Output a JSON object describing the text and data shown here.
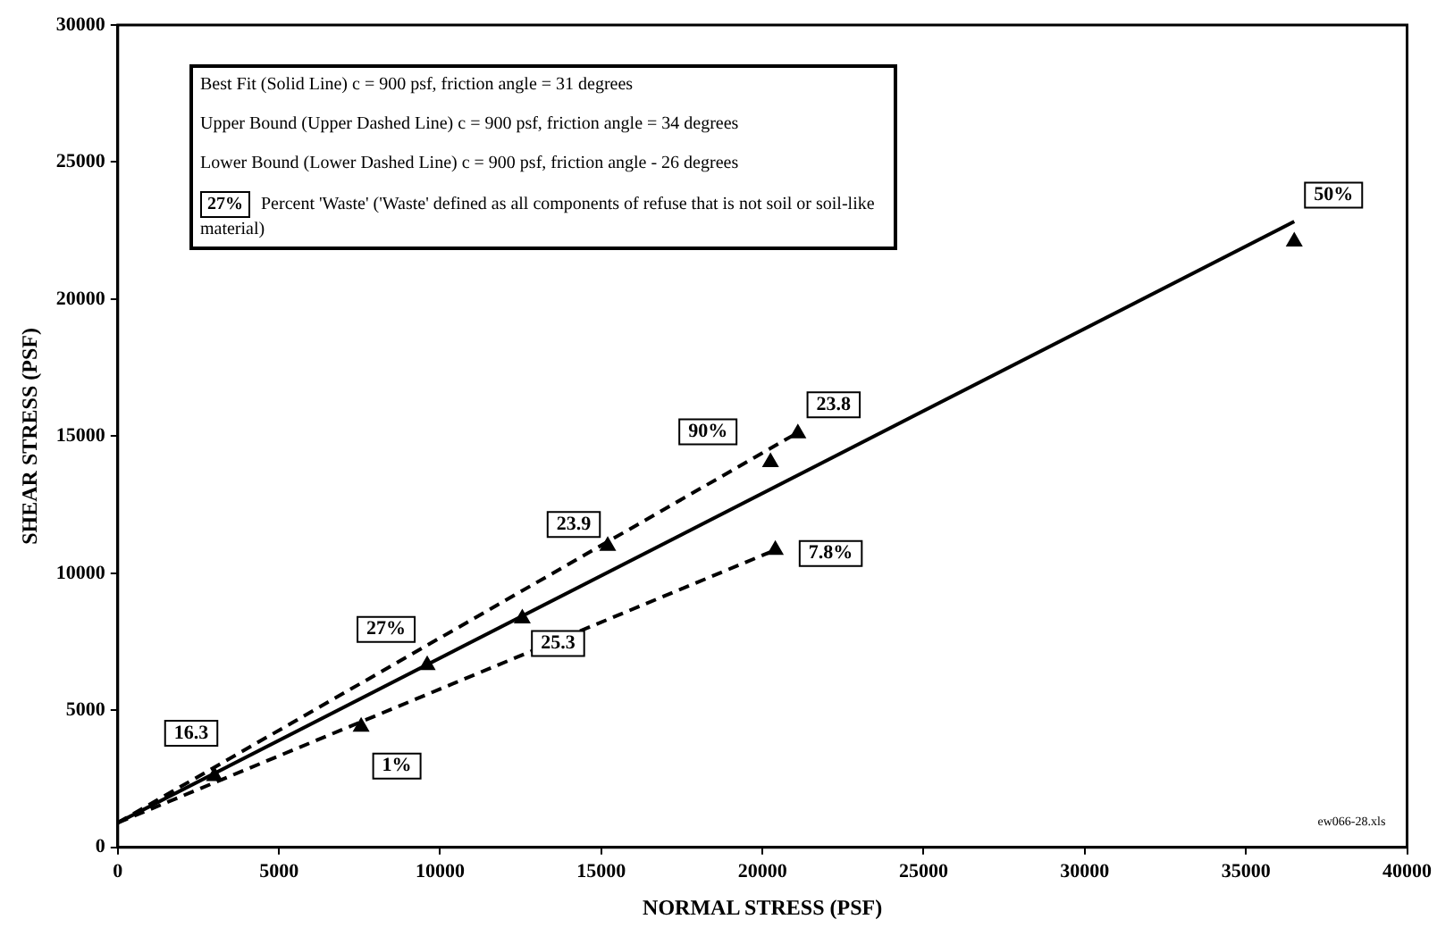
{
  "chart_data": {
    "type": "scatter",
    "xlabel": "NORMAL STRESS (PSF)",
    "ylabel": "SHEAR STRESS (PSF)",
    "xlim": [
      0,
      40000
    ],
    "xticks": [
      0,
      5000,
      10000,
      15000,
      20000,
      25000,
      30000,
      35000,
      40000
    ],
    "ylim": [
      0,
      30000
    ],
    "yticks": [
      0,
      5000,
      10000,
      15000,
      20000,
      25000,
      30000
    ],
    "grid": false,
    "legend": false,
    "series": [
      {
        "type": "line",
        "line_style": "solid",
        "marker": "none",
        "color": "#000000",
        "x": [
          0,
          36500
        ],
        "values": [
          900,
          22830
        ]
      },
      {
        "type": "line",
        "line_style": "dashed",
        "marker": "none",
        "color": "#000000",
        "x": [
          0,
          21100
        ],
        "values": [
          900,
          15130
        ]
      },
      {
        "type": "line",
        "line_style": "dashed",
        "marker": "none",
        "color": "#000000",
        "x": [
          0,
          20400
        ],
        "values": [
          900,
          10850
        ]
      },
      {
        "type": "scatter",
        "marker": "triangle",
        "color": "#000000",
        "x": [
          3000,
          7550,
          9600,
          12550,
          15200,
          20400,
          20250,
          21100,
          36500
        ],
        "values": [
          2600,
          4400,
          6650,
          8350,
          11000,
          10850,
          14050,
          15100,
          22100
        ]
      }
    ],
    "annotations": [
      "Best Fit (Solid Line) c = 900 psf, friction angle = 31 degrees",
      "Upper Bound (Upper Dashed Line) c = 900 psf, friction angle = 34 degrees",
      "Lower Bound (Lower Dashed Line) c = 900 psf, friction angle - 26 degrees",
      "27%",
      "Percent 'Waste' ('Waste' defined as all components of refuse that is not soil or soil-like material)",
      {
        "text": "16.3",
        "x": 3000,
        "y": 2600
      },
      {
        "text": "1%",
        "x": 7550,
        "y": 4400
      },
      {
        "text": "27%",
        "x": 9600,
        "y": 6650
      },
      {
        "text": "25.3",
        "x": 12550,
        "y": 8350
      },
      {
        "text": "23.9",
        "x": 15200,
        "y": 11000
      },
      {
        "text": "7.8%",
        "x": 20400,
        "y": 10850
      },
      {
        "text": "90%",
        "x": 20250,
        "y": 14050
      },
      {
        "text": "23.8",
        "x": 21100,
        "y": 15100
      },
      {
        "text": "50%",
        "x": 36500,
        "y": 22100
      },
      "ew066-28.xls"
    ]
  }
}
